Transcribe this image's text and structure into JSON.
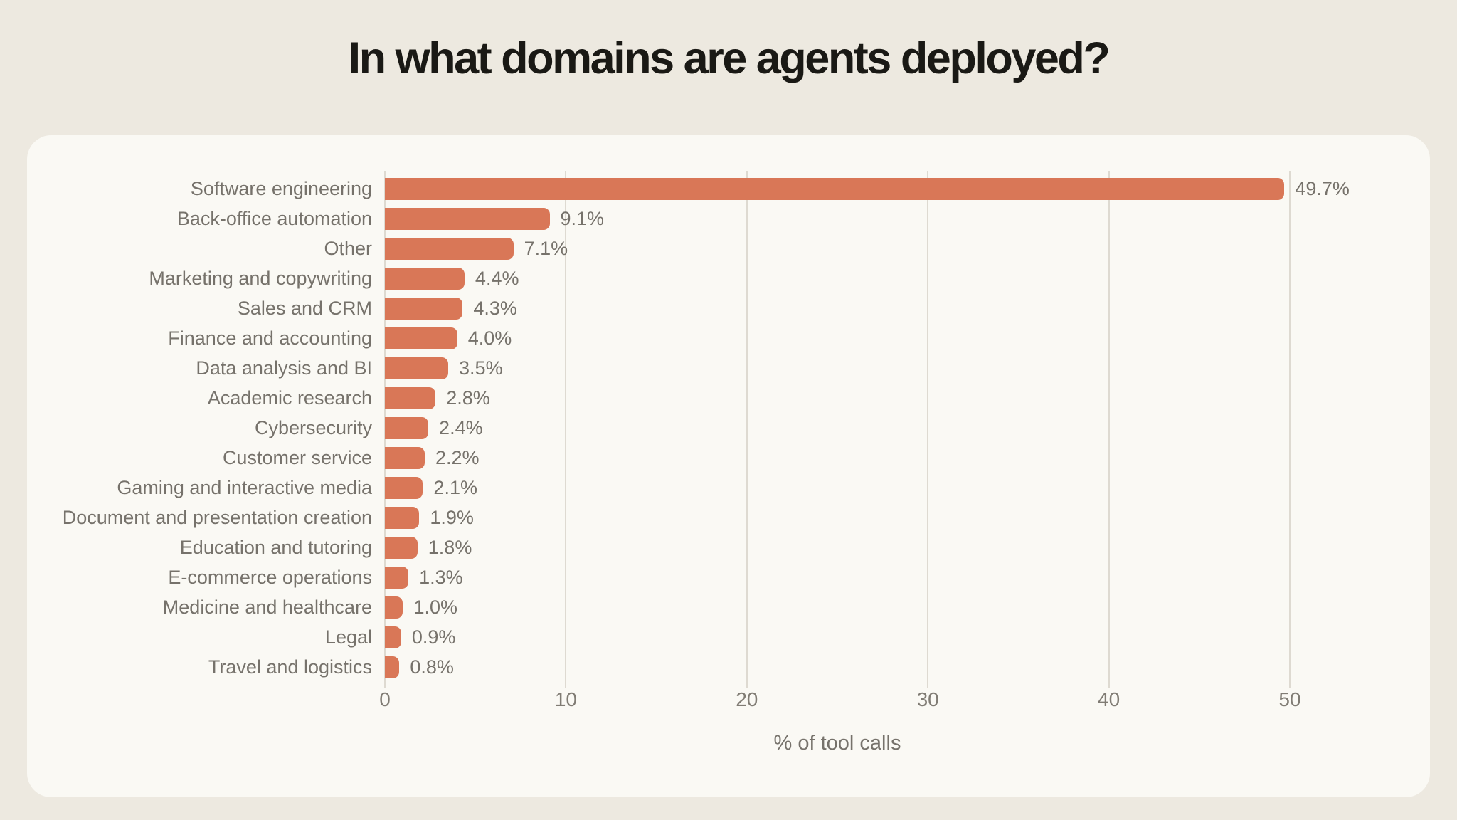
{
  "page": {
    "title": "In what domains are agents deployed?",
    "background_color": "#EDE9E0",
    "card_color": "#FAF9F4"
  },
  "chart_data": {
    "type": "bar",
    "orientation": "horizontal",
    "title": "In what domains are agents deployed?",
    "xlabel": "% of tool calls",
    "categories": [
      "Software engineering",
      "Back-office automation",
      "Other",
      "Marketing and copywriting",
      "Sales and CRM",
      "Finance and accounting",
      "Data analysis and BI",
      "Academic research",
      "Cybersecurity",
      "Customer service",
      "Gaming and interactive media",
      "Document and presentation creation",
      "Education and tutoring",
      "E-commerce operations",
      "Medicine and healthcare",
      "Legal",
      "Travel and logistics"
    ],
    "values": [
      49.7,
      9.1,
      7.1,
      4.4,
      4.3,
      4.0,
      3.5,
      2.8,
      2.4,
      2.2,
      2.1,
      1.9,
      1.8,
      1.3,
      1.0,
      0.9,
      0.8
    ],
    "value_labels": [
      "49.7%",
      "9.1%",
      "7.1%",
      "4.4%",
      "4.3%",
      "4.0%",
      "3.5%",
      "2.8%",
      "2.4%",
      "2.2%",
      "2.1%",
      "1.9%",
      "1.8%",
      "1.3%",
      "1.0%",
      "0.9%",
      "0.8%"
    ],
    "xticks": [
      0,
      10,
      20,
      30,
      40,
      50
    ],
    "xlim": [
      0,
      50
    ],
    "grid": true,
    "legend": false,
    "bar_color": "#D97757",
    "label_color": "#76726B",
    "gridline_color": "#DEDAD1"
  }
}
